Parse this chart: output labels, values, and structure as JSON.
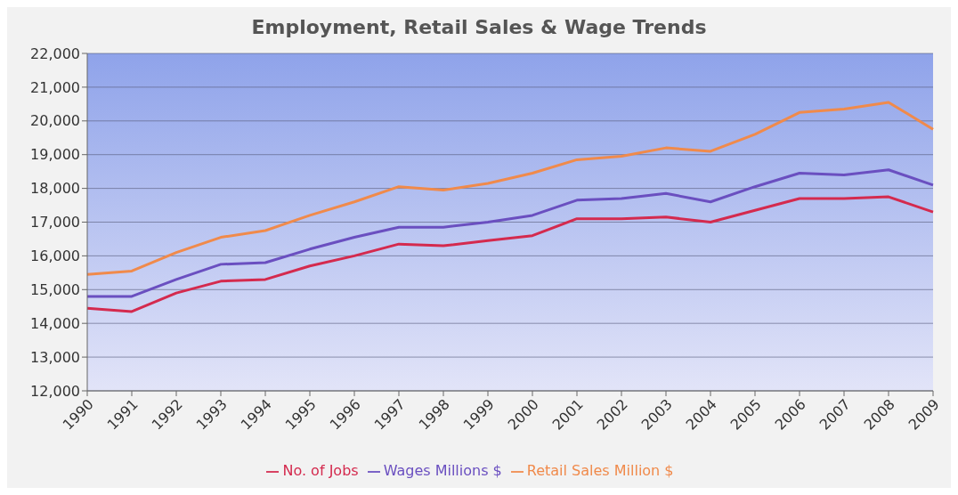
{
  "chart_data": {
    "type": "line",
    "title": "Employment, Retail Sales & Wage Trends",
    "categories": [
      "1990",
      "1991",
      "1992",
      "1993",
      "1994",
      "1995",
      "1996",
      "1997",
      "1998",
      "1999",
      "2000",
      "2001",
      "2002",
      "2003",
      "2004",
      "2005",
      "2006",
      "2007",
      "2008",
      "2009"
    ],
    "series": [
      {
        "name": "No. of Jobs",
        "color": "#d42a4e",
        "values": [
          14450,
          14350,
          14900,
          15250,
          15300,
          15700,
          16000,
          16350,
          16300,
          16450,
          16600,
          17100,
          17100,
          17150,
          17000,
          17350,
          17700,
          17700,
          17750,
          17300
        ]
      },
      {
        "name": "Wages Millions $",
        "color": "#6a4fc0",
        "values": [
          14800,
          14800,
          15300,
          15750,
          15800,
          16200,
          16550,
          16850,
          16850,
          17000,
          17200,
          17650,
          17700,
          17850,
          17600,
          18050,
          18450,
          18400,
          18550,
          18100
        ]
      },
      {
        "name": "Retail Sales Million $",
        "color": "#f08a4b",
        "values": [
          15450,
          15550,
          16100,
          16550,
          16750,
          17200,
          17600,
          18050,
          17950,
          18150,
          18450,
          18850,
          18950,
          19200,
          19100,
          19600,
          20250,
          20350,
          20550,
          19750
        ]
      }
    ],
    "ylim": [
      12000,
      22000
    ],
    "yticks": [
      {
        "value": 12000,
        "label": "12,000"
      },
      {
        "value": 13000,
        "label": "13,000"
      },
      {
        "value": 14000,
        "label": "14,000"
      },
      {
        "value": 15000,
        "label": "15,000"
      },
      {
        "value": 16000,
        "label": "16,000"
      },
      {
        "value": 17000,
        "label": "17,000"
      },
      {
        "value": 18000,
        "label": "18,000"
      },
      {
        "value": 19000,
        "label": "19,000"
      },
      {
        "value": 20000,
        "label": "20,000"
      },
      {
        "value": 21000,
        "label": "21,000"
      },
      {
        "value": 22000,
        "label": "22,000"
      }
    ],
    "grid": "y",
    "legend": "bottom",
    "marker": "none",
    "line_style": "solid"
  }
}
